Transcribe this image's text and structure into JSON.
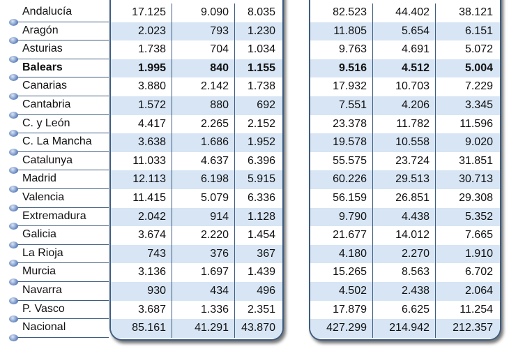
{
  "rows": [
    [
      "Andalucía",
      "17.125",
      "9.090",
      "8.035",
      "82.523",
      "44.402",
      "38.121"
    ],
    [
      "Aragón",
      "2.023",
      "793",
      "1.230",
      "11.805",
      "5.654",
      "6.151"
    ],
    [
      "Asturias",
      "1.738",
      "704",
      "1.034",
      "9.763",
      "4.691",
      "5.072"
    ],
    [
      "Balears",
      "1.995",
      "840",
      "1.155",
      "9.516",
      "4.512",
      "5.004"
    ],
    [
      "Canarias",
      "3.880",
      "2.142",
      "1.738",
      "17.932",
      "10.703",
      "7.229"
    ],
    [
      "Cantabria",
      "1.572",
      "880",
      "692",
      "7.551",
      "4.206",
      "3.345"
    ],
    [
      "C. y León",
      "4.417",
      "2.265",
      "2.152",
      "23.378",
      "11.782",
      "11.596"
    ],
    [
      "C. La Mancha",
      "3.638",
      "1.686",
      "1.952",
      "19.578",
      "10.558",
      "9.020"
    ],
    [
      "Catalunya",
      "11.033",
      "4.637",
      "6.396",
      "55.575",
      "23.724",
      "31.851"
    ],
    [
      "Madrid",
      "12.113",
      "6.198",
      "5.915",
      "60.226",
      "29.513",
      "30.713"
    ],
    [
      "Valencia",
      "11.415",
      "5.079",
      "6.336",
      "56.159",
      "26.851",
      "29.308"
    ],
    [
      "Extremadura",
      "2.042",
      "914",
      "1.128",
      "9.790",
      "4.438",
      "5.352"
    ],
    [
      "Galicia",
      "3.674",
      "2.220",
      "1.454",
      "21.677",
      "14.012",
      "7.665"
    ],
    [
      "La Rioja",
      "743",
      "376",
      "367",
      "4.180",
      "2.270",
      "1.910"
    ],
    [
      "Murcia",
      "3.136",
      "1.697",
      "1.439",
      "15.265",
      "8.563",
      "6.702"
    ],
    [
      "Navarra",
      "930",
      "434",
      "496",
      "4.502",
      "2.438",
      "2.064"
    ],
    [
      "P. Vasco",
      "3.687",
      "1.336",
      "2.351",
      "17.879",
      "6.625",
      "11.254"
    ],
    [
      "Nacional",
      "85.161",
      "41.291",
      "43.870",
      "427.299",
      "214.942",
      "212.357"
    ]
  ],
  "highlight_row": "Balears",
  "colors": {
    "row_shade": "#d7e5f4",
    "border": "#3f5d80"
  }
}
